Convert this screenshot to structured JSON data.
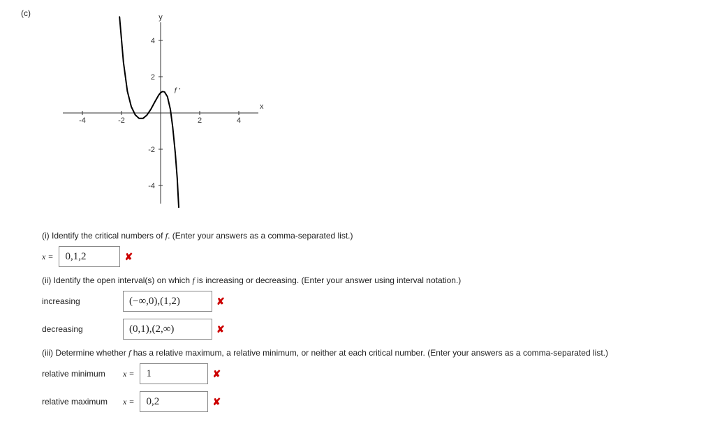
{
  "part_label": "(c)",
  "graph": {
    "xlim": [
      -5,
      5
    ],
    "ylim": [
      -5,
      5
    ],
    "xticks": [
      -4,
      -2,
      2,
      4
    ],
    "yticks": [
      -4,
      -2,
      2,
      4
    ],
    "xlabel": "x",
    "ylabel": "y",
    "curve_label": "f '",
    "axis_color": "#333333",
    "tick_color": "#333333",
    "curve_color": "#000000",
    "curve_width": 2,
    "curve_points": [
      [
        -2.1,
        5.3
      ],
      [
        -1.9,
        2.8
      ],
      [
        -1.7,
        1.2
      ],
      [
        -1.5,
        0.35
      ],
      [
        -1.3,
        -0.1
      ],
      [
        -1.1,
        -0.3
      ],
      [
        -0.9,
        -0.3
      ],
      [
        -0.7,
        -0.12
      ],
      [
        -0.5,
        0.2
      ],
      [
        -0.3,
        0.6
      ],
      [
        -0.1,
        0.98
      ],
      [
        0.0,
        1.12
      ],
      [
        0.1,
        1.18
      ],
      [
        0.2,
        1.16
      ],
      [
        0.35,
        0.9
      ],
      [
        0.5,
        0.2
      ],
      [
        0.62,
        -0.8
      ],
      [
        0.75,
        -2.2
      ],
      [
        0.85,
        -3.6
      ],
      [
        0.93,
        -5.2
      ]
    ]
  },
  "q1": {
    "text": "(i) Identify the critical numbers of ",
    "fn": "f",
    "after": ". (Enter your answers as a comma-separated list.)",
    "var_label": "x =",
    "answer": "0,1,2",
    "status": "wrong"
  },
  "q2": {
    "text": "(ii) Identify the open interval(s) on which ",
    "fn": "f",
    "after": " is increasing or decreasing. (Enter your answer using interval notation.)",
    "inc_label": "increasing",
    "inc_answer": "(−∞,0),(1,2)",
    "inc_status": "wrong",
    "dec_label": "decreasing",
    "dec_answer": "(0,1),(2,∞)",
    "dec_status": "wrong"
  },
  "q3": {
    "text": "(iii) Determine whether ",
    "fn": "f",
    "after": " has a relative maximum, a relative minimum, or neither at each critical number. (Enter your answers as a comma-separated list.)",
    "min_label": "relative minimum",
    "min_var": "x =",
    "min_answer": "1",
    "min_status": "wrong",
    "max_label": "relative maximum",
    "max_var": "x =",
    "max_answer": "0,2",
    "max_status": "wrong"
  },
  "wrong_glyph": "✘"
}
